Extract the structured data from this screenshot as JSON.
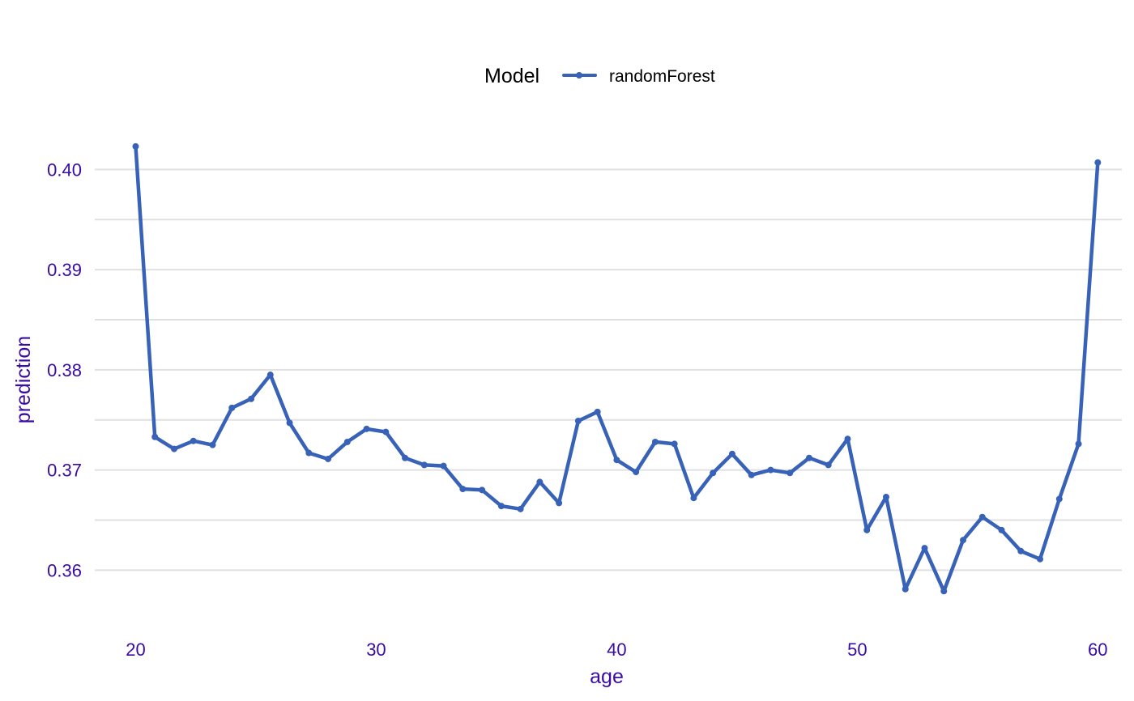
{
  "chart_data": {
    "type": "line",
    "title": "",
    "xlabel": "age",
    "ylabel": "prediction",
    "xlim": [
      18.3,
      61.0
    ],
    "ylim": [
      0.3555,
      0.4048
    ],
    "x_ticks": [
      20,
      30,
      40,
      50,
      60
    ],
    "x_tick_labels": [
      "20",
      "30",
      "40",
      "50",
      "60"
    ],
    "y_ticks": [
      0.36,
      0.37,
      0.38,
      0.39,
      0.4
    ],
    "y_tick_labels": [
      "0.36",
      "0.37",
      "0.38",
      "0.39",
      "0.40"
    ],
    "y_minor_ticks": [
      0.365,
      0.375,
      0.385,
      0.395
    ],
    "grid": true,
    "legend": {
      "title": "Model",
      "position": "top",
      "entries": [
        "randomForest"
      ]
    },
    "colors": {
      "series": "#3762b8",
      "grid": "#e0e0e0",
      "axis_text": "#3a0ca3"
    },
    "series": [
      {
        "name": "randomForest",
        "x": [
          20.0,
          20.8,
          21.6,
          22.4,
          23.2,
          24.0,
          24.8,
          25.6,
          26.4,
          27.2,
          28.0,
          28.8,
          29.6,
          30.4,
          31.2,
          32.0,
          32.8,
          33.6,
          34.4,
          35.2,
          36.0,
          36.8,
          37.6,
          38.4,
          39.2,
          40.0,
          40.8,
          41.6,
          42.4,
          43.2,
          44.0,
          44.8,
          45.6,
          46.4,
          47.2,
          48.0,
          48.8,
          49.6,
          50.4,
          51.2,
          52.0,
          52.8,
          53.6,
          54.4,
          55.2,
          56.0,
          56.8,
          57.6,
          58.4,
          59.2,
          60.0
        ],
        "values": [
          0.4023,
          0.3733,
          0.3721,
          0.3729,
          0.3725,
          0.3762,
          0.3771,
          0.3795,
          0.3747,
          0.3717,
          0.3711,
          0.3728,
          0.3741,
          0.3738,
          0.3712,
          0.3705,
          0.3704,
          0.3681,
          0.368,
          0.3664,
          0.3661,
          0.3688,
          0.3667,
          0.3749,
          0.3758,
          0.371,
          0.3698,
          0.3728,
          0.3726,
          0.3672,
          0.3697,
          0.3716,
          0.3695,
          0.37,
          0.3697,
          0.3712,
          0.3705,
          0.3731,
          0.364,
          0.3673,
          0.3581,
          0.3622,
          0.3579,
          0.363,
          0.3653,
          0.364,
          0.3619,
          0.3611,
          0.3671,
          0.3726,
          0.4007
        ]
      }
    ]
  }
}
